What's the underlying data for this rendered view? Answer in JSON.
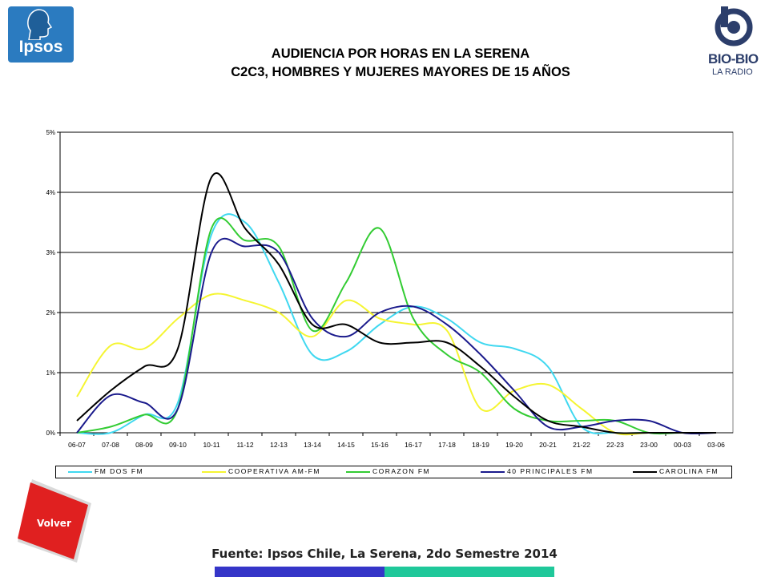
{
  "header": {
    "ipsos_logo_text": "Ipsos",
    "biobio_logo_text": "BIO-BIO",
    "biobio_logo_sub": "LA RADIO",
    "title_line1": "AUDIENCIA POR HORAS EN LA SERENA",
    "title_line2": "C2C3, HOMBRES Y MUJERES MAYORES DE 15 AÑOS"
  },
  "footer": {
    "volver_label": "Volver",
    "source": "Fuente: Ipsos Chile, La Serena, 2do Semestre 2014",
    "bar_colors": [
      "#3535c8",
      "#1fc89a"
    ],
    "volver_color": "#e02020"
  },
  "chart_data": {
    "type": "line",
    "smooth": true,
    "categories": [
      "06-07",
      "07-08",
      "08-09",
      "09-10",
      "10-11",
      "11-12",
      "12-13",
      "13-14",
      "14-15",
      "15-16",
      "16-17",
      "17-18",
      "18-19",
      "19-20",
      "20-21",
      "21-22",
      "22-23",
      "23-00",
      "00-03",
      "03-06"
    ],
    "ylim": [
      0,
      5
    ],
    "yticks": [
      0,
      1,
      2,
      3,
      4,
      5
    ],
    "ytick_labels": [
      "0%",
      "1%",
      "2%",
      "3%",
      "4%",
      "5%"
    ],
    "grid": true,
    "legend_position": "bottom",
    "series": [
      {
        "name": "FM DOS FM",
        "color": "#40d8f0",
        "values": [
          0.0,
          0.0,
          0.3,
          0.5,
          3.3,
          3.5,
          2.5,
          1.3,
          1.35,
          1.8,
          2.1,
          1.9,
          1.5,
          1.4,
          1.1,
          0.1,
          0.0,
          0.0,
          0.0,
          0.0
        ]
      },
      {
        "name": "COOPERATIVA AM-FM",
        "color": "#f5f532",
        "values": [
          0.6,
          1.45,
          1.4,
          1.9,
          2.3,
          2.2,
          2.0,
          1.6,
          2.2,
          1.9,
          1.8,
          1.7,
          0.4,
          0.7,
          0.8,
          0.4,
          0.0,
          0.0,
          0.0,
          0.0
        ]
      },
      {
        "name": "CORAZON FM",
        "color": "#33cc33",
        "values": [
          0.0,
          0.1,
          0.3,
          0.4,
          3.4,
          3.2,
          3.1,
          1.7,
          2.5,
          3.4,
          1.9,
          1.3,
          1.0,
          0.4,
          0.2,
          0.2,
          0.2,
          0.0,
          0.0,
          0.0
        ]
      },
      {
        "name": "40 PRINCIPALES FM",
        "color": "#1a1a8c",
        "values": [
          0.0,
          0.62,
          0.5,
          0.4,
          3.0,
          3.1,
          3.0,
          1.9,
          1.6,
          2.0,
          2.1,
          1.8,
          1.3,
          0.7,
          0.1,
          0.1,
          0.2,
          0.2,
          0.0,
          0.0
        ]
      },
      {
        "name": "CAROLINA FM",
        "color": "#000000",
        "values": [
          0.2,
          0.7,
          1.1,
          1.4,
          4.25,
          3.4,
          2.8,
          1.8,
          1.8,
          1.5,
          1.5,
          1.5,
          1.1,
          0.6,
          0.2,
          0.1,
          0.0,
          0.0,
          0.0,
          0.0
        ]
      }
    ]
  }
}
